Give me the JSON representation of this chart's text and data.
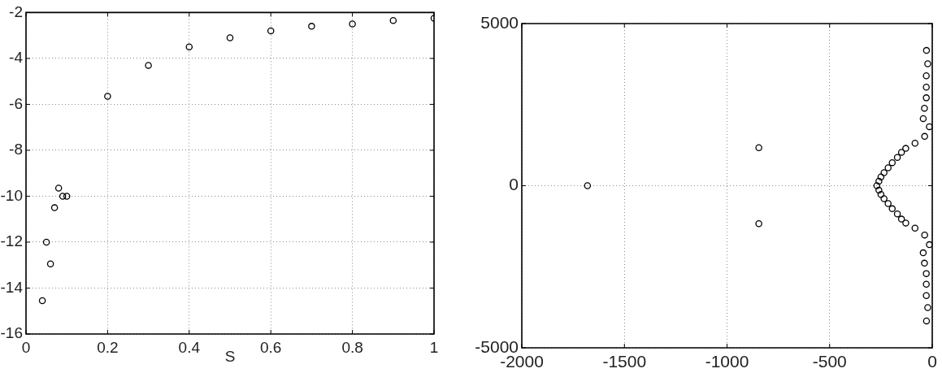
{
  "chart_data": [
    {
      "type": "scatter",
      "x": [
        0.04,
        0.05,
        0.06,
        0.07,
        0.08,
        0.09,
        0.1,
        0.2,
        0.3,
        0.4,
        0.5,
        0.6,
        0.7,
        0.8,
        0.9,
        1
      ],
      "values": [
        -14.55,
        -12,
        -12.95,
        -10.5,
        -9.65,
        -10,
        -10,
        -5.65,
        -4.3,
        -3.5,
        -3.1,
        -2.8,
        -2.6,
        -2.5,
        -2.35,
        -2.25
      ],
      "color": "#000000",
      "marker": "circle",
      "xlabel": "S",
      "xlim": [
        0,
        1
      ],
      "xticks": [
        0,
        0.2,
        0.4,
        0.6,
        0.8,
        1
      ],
      "ylim": [
        -16,
        -2
      ],
      "yticks": [
        -16,
        -14,
        -12,
        -10,
        -8,
        -6,
        -4,
        -2
      ],
      "grid": true
    },
    {
      "type": "scatter",
      "x": [
        -1680,
        -845,
        -845,
        -28,
        -22,
        -29,
        -29,
        -29,
        -38,
        -44,
        -14,
        -37,
        -84,
        -129,
        -150,
        -170,
        -195,
        -215,
        -235,
        -250,
        -260,
        -270,
        -260,
        -250,
        -235,
        -215,
        -195,
        -170,
        -150,
        -129,
        -84,
        -37,
        -14,
        -44,
        -38,
        -29,
        -29,
        -29,
        -22,
        -28
      ],
      "values": [
        0,
        1170,
        -1170,
        4170,
        3760,
        3390,
        3040,
        2710,
        2390,
        2070,
        1820,
        1520,
        1310,
        1150,
        1030,
        870,
        710,
        550,
        400,
        270,
        140,
        0,
        -140,
        -270,
        -400,
        -550,
        -710,
        -870,
        -1030,
        -1150,
        -1310,
        -1520,
        -1820,
        -2070,
        -2390,
        -2710,
        -3040,
        -3390,
        -3760,
        -4170
      ],
      "color": "#000000",
      "marker": "circle",
      "xlim": [
        -2000,
        0
      ],
      "xticks": [
        -2000,
        -1500,
        -1000,
        -500,
        0
      ],
      "ylim": [
        -5000,
        5000
      ],
      "yticks": [
        -5000,
        0,
        5000
      ],
      "grid": true
    }
  ]
}
